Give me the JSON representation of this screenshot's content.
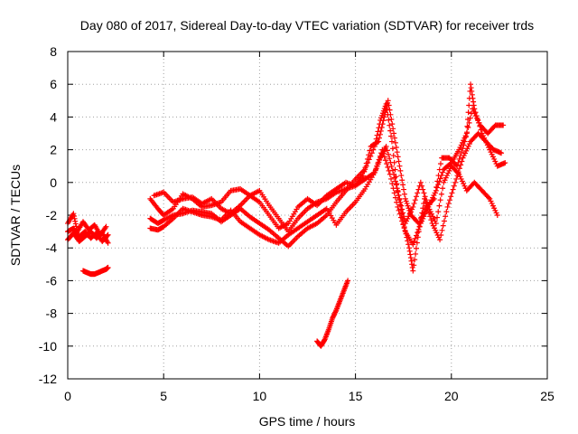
{
  "chart_data": {
    "type": "scatter",
    "title": "Day 080 of 2017, Sidereal Day-to-day VTEC variation (SDTVAR) for receiver trds",
    "xlabel": "GPS time / hours",
    "ylabel": "SDTVAR / TECUs",
    "xlim": [
      0,
      25
    ],
    "ylim": [
      -12,
      8
    ],
    "xticks": [
      0,
      5,
      10,
      15,
      20,
      25
    ],
    "yticks": [
      -12,
      -10,
      -8,
      -6,
      -4,
      -2,
      0,
      2,
      4,
      6,
      8
    ],
    "xtick_labels": [
      "0",
      "5",
      "10",
      "15",
      "20",
      "25"
    ],
    "ytick_labels": [
      "-12",
      "-10",
      "-8",
      "-6",
      "-4",
      "-2",
      "0",
      "2",
      "4",
      "6",
      "8"
    ],
    "grid": true,
    "marker": "+",
    "color": "#ff0000",
    "series": [
      {
        "name": "track-a-early",
        "points": [
          [
            0.0,
            -3.0
          ],
          [
            0.3,
            -2.8
          ],
          [
            0.6,
            -3.3
          ],
          [
            0.9,
            -3.0
          ],
          [
            1.2,
            -3.4
          ],
          [
            1.5,
            -3.1
          ],
          [
            1.8,
            -3.6
          ],
          [
            2.1,
            -3.2
          ]
        ]
      },
      {
        "name": "track-b-early",
        "points": [
          [
            0.0,
            -2.5
          ],
          [
            0.3,
            -1.9
          ],
          [
            0.5,
            -3.0
          ],
          [
            0.8,
            -2.4
          ],
          [
            1.1,
            -2.9
          ],
          [
            1.4,
            -2.6
          ],
          [
            1.7,
            -3.2
          ],
          [
            2.0,
            -2.7
          ]
        ]
      },
      {
        "name": "track-c-early",
        "points": [
          [
            0.0,
            -3.5
          ],
          [
            0.3,
            -3.1
          ],
          [
            0.6,
            -3.6
          ],
          [
            0.9,
            -3.3
          ],
          [
            1.2,
            -3.0
          ],
          [
            1.5,
            -3.4
          ],
          [
            1.8,
            -3.1
          ],
          [
            2.1,
            -3.7
          ]
        ]
      },
      {
        "name": "track-d-early",
        "points": [
          [
            0.8,
            -5.4
          ],
          [
            1.0,
            -5.5
          ],
          [
            1.2,
            -5.6
          ],
          [
            1.4,
            -5.6
          ],
          [
            1.6,
            -5.5
          ],
          [
            1.8,
            -5.4
          ],
          [
            2.0,
            -5.3
          ],
          [
            2.1,
            -5.2
          ]
        ]
      },
      {
        "name": "track-main-1",
        "points": [
          [
            4.3,
            -1.0
          ],
          [
            4.7,
            -1.6
          ],
          [
            5.0,
            -2.0
          ],
          [
            5.5,
            -1.6
          ],
          [
            6.0,
            -0.7
          ],
          [
            6.5,
            -1.0
          ],
          [
            7.0,
            -1.5
          ],
          [
            7.5,
            -1.4
          ],
          [
            8.0,
            -1.2
          ],
          [
            8.5,
            -0.5
          ],
          [
            9.0,
            -0.4
          ],
          [
            9.5,
            -0.8
          ],
          [
            10.0,
            -0.5
          ],
          [
            10.5,
            -1.4
          ],
          [
            11.0,
            -2.2
          ],
          [
            11.5,
            -3.0
          ],
          [
            12.0,
            -2.2
          ],
          [
            12.5,
            -1.6
          ],
          [
            13.0,
            -1.2
          ],
          [
            13.5,
            -1.0
          ],
          [
            14.0,
            -0.6
          ],
          [
            14.5,
            -0.4
          ],
          [
            15.0,
            -0.2
          ],
          [
            15.5,
            0.2
          ],
          [
            16.0,
            0.6
          ],
          [
            16.3,
            1.5
          ],
          [
            16.6,
            2.2
          ],
          [
            17.0,
            0.5
          ],
          [
            17.3,
            -1.0
          ],
          [
            17.6,
            -2.5
          ],
          [
            18.0,
            -1.5
          ],
          [
            18.4,
            0.0
          ],
          [
            18.8,
            -1.5
          ],
          [
            19.2,
            -2.5
          ],
          [
            19.6,
            0.0
          ],
          [
            20.0,
            1.0
          ],
          [
            20.4,
            0.5
          ],
          [
            20.8,
            -0.5
          ],
          [
            21.2,
            0.0
          ],
          [
            21.6,
            -0.5
          ],
          [
            22.0,
            -1.0
          ],
          [
            22.4,
            -2.0
          ]
        ]
      },
      {
        "name": "track-main-2",
        "points": [
          [
            4.3,
            -2.2
          ],
          [
            4.7,
            -2.5
          ],
          [
            5.0,
            -2.3
          ],
          [
            5.5,
            -2.0
          ],
          [
            6.0,
            -1.9
          ],
          [
            6.5,
            -1.7
          ],
          [
            7.0,
            -1.8
          ],
          [
            7.5,
            -1.9
          ],
          [
            8.0,
            -2.4
          ],
          [
            8.5,
            -2.0
          ],
          [
            9.0,
            -1.6
          ],
          [
            9.5,
            -2.1
          ],
          [
            10.0,
            -2.5
          ],
          [
            10.5,
            -2.9
          ],
          [
            11.0,
            -3.4
          ],
          [
            11.5,
            -3.9
          ],
          [
            12.0,
            -3.3
          ],
          [
            12.5,
            -2.8
          ],
          [
            13.0,
            -2.5
          ],
          [
            13.5,
            -2.0
          ],
          [
            14.0,
            -1.2
          ],
          [
            14.5,
            -0.5
          ],
          [
            15.0,
            0.2
          ],
          [
            15.5,
            0.8
          ],
          [
            16.0,
            2.2
          ],
          [
            16.3,
            3.8
          ],
          [
            16.6,
            4.8
          ],
          [
            16.9,
            2.5
          ],
          [
            17.2,
            -0.5
          ],
          [
            17.5,
            -2.5
          ],
          [
            17.8,
            -4.0
          ],
          [
            18.0,
            -5.4
          ],
          [
            18.3,
            -3.0
          ],
          [
            18.6,
            -1.0
          ],
          [
            19.0,
            -2.5
          ],
          [
            19.4,
            -3.5
          ],
          [
            19.8,
            -1.5
          ],
          [
            20.2,
            0.0
          ],
          [
            20.6,
            1.5
          ],
          [
            21.0,
            2.5
          ],
          [
            21.4,
            3.0
          ],
          [
            21.8,
            2.5
          ],
          [
            22.2,
            2.0
          ],
          [
            22.6,
            1.8
          ]
        ]
      },
      {
        "name": "track-main-3",
        "points": [
          [
            4.3,
            -2.8
          ],
          [
            4.7,
            -2.9
          ],
          [
            5.0,
            -2.7
          ],
          [
            5.5,
            -2.2
          ],
          [
            6.0,
            -1.6
          ],
          [
            6.5,
            -1.8
          ],
          [
            7.0,
            -2.0
          ],
          [
            7.5,
            -2.1
          ],
          [
            8.0,
            -2.3
          ],
          [
            8.5,
            -1.7
          ],
          [
            9.0,
            -2.4
          ],
          [
            9.5,
            -2.8
          ],
          [
            10.0,
            -3.2
          ],
          [
            10.5,
            -3.5
          ],
          [
            11.0,
            -3.7
          ],
          [
            11.5,
            -3.2
          ],
          [
            12.0,
            -2.8
          ],
          [
            12.5,
            -2.4
          ],
          [
            13.0,
            -2.0
          ],
          [
            13.5,
            -1.6
          ],
          [
            14.0,
            -2.6
          ],
          [
            14.5,
            -1.8
          ],
          [
            15.0,
            -1.2
          ],
          [
            15.5,
            -0.4
          ],
          [
            16.0,
            0.6
          ],
          [
            16.4,
            2.0
          ],
          [
            16.8,
            0.5
          ],
          [
            17.2,
            -1.5
          ],
          [
            17.6,
            -3.0
          ],
          [
            18.0,
            -3.8
          ],
          [
            18.4,
            -2.5
          ],
          [
            18.8,
            -1.5
          ],
          [
            19.2,
            -0.5
          ],
          [
            19.6,
            0.8
          ],
          [
            20.0,
            1.2
          ],
          [
            20.4,
            2.0
          ],
          [
            20.8,
            3.0
          ],
          [
            21.0,
            6.0
          ],
          [
            21.2,
            4.5
          ],
          [
            21.6,
            3.0
          ],
          [
            22.0,
            2.0
          ],
          [
            22.4,
            1.0
          ],
          [
            22.8,
            1.2
          ]
        ]
      },
      {
        "name": "track-main-4",
        "points": [
          [
            4.5,
            -0.8
          ],
          [
            5.0,
            -0.6
          ],
          [
            5.5,
            -1.2
          ],
          [
            6.0,
            -1.0
          ],
          [
            6.5,
            -0.9
          ],
          [
            7.0,
            -1.3
          ],
          [
            7.5,
            -1.0
          ],
          [
            8.0,
            -1.6
          ],
          [
            8.5,
            -1.9
          ],
          [
            9.0,
            -1.4
          ],
          [
            9.5,
            -0.8
          ],
          [
            10.0,
            -1.2
          ],
          [
            10.5,
            -2.0
          ],
          [
            11.0,
            -2.8
          ],
          [
            11.5,
            -2.5
          ],
          [
            12.0,
            -1.5
          ],
          [
            12.5,
            -1.0
          ],
          [
            13.0,
            -1.4
          ],
          [
            13.5,
            -0.8
          ],
          [
            14.0,
            -0.4
          ],
          [
            14.5,
            0.0
          ],
          [
            15.0,
            -0.2
          ],
          [
            15.4,
            0.4
          ],
          [
            15.8,
            2.2
          ],
          [
            16.2,
            2.5
          ],
          [
            16.5,
            4.0
          ],
          [
            16.7,
            5.0
          ],
          [
            17.0,
            3.0
          ],
          [
            17.3,
            1.0
          ],
          [
            17.6,
            -1.0
          ],
          [
            17.9,
            -2.0
          ],
          [
            18.3,
            -2.5
          ],
          [
            18.7,
            -1.5
          ],
          [
            19.1,
            -1.0
          ],
          [
            19.5,
            1.5
          ],
          [
            19.9,
            1.5
          ],
          [
            20.3,
            1.0
          ],
          [
            20.7,
            2.5
          ],
          [
            21.1,
            4.5
          ],
          [
            21.5,
            3.5
          ],
          [
            21.9,
            3.0
          ],
          [
            22.3,
            3.5
          ],
          [
            22.7,
            3.5
          ]
        ]
      },
      {
        "name": "track-mid-short",
        "points": [
          [
            13.0,
            -9.7
          ],
          [
            13.2,
            -10.0
          ],
          [
            13.4,
            -9.6
          ],
          [
            13.6,
            -9.0
          ],
          [
            13.8,
            -8.3
          ],
          [
            14.0,
            -7.8
          ],
          [
            14.2,
            -7.2
          ],
          [
            14.4,
            -6.6
          ],
          [
            14.6,
            -6.0
          ]
        ]
      }
    ]
  }
}
